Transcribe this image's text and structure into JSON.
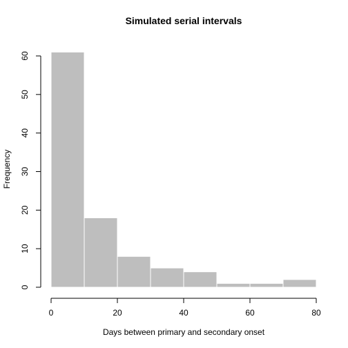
{
  "chart_data": {
    "type": "bar",
    "subtype": "histogram",
    "title": "Simulated serial intervals",
    "xlabel": "Days between primary and secondary onset",
    "ylabel": "Frequency",
    "bin_edges": [
      0,
      10,
      20,
      30,
      40,
      50,
      60,
      70,
      80
    ],
    "values": [
      61,
      18,
      8,
      5,
      4,
      1,
      1,
      2
    ],
    "xlim": [
      0,
      80
    ],
    "ylim": [
      0,
      60
    ],
    "x_ticks": [
      "0",
      "20",
      "40",
      "60",
      "80"
    ],
    "y_ticks": [
      "0",
      "10",
      "20",
      "30",
      "40",
      "50",
      "60"
    ],
    "bar_color": "#bebebe",
    "bar_border_color": "#ffffff",
    "grid": false,
    "legend": "none"
  }
}
